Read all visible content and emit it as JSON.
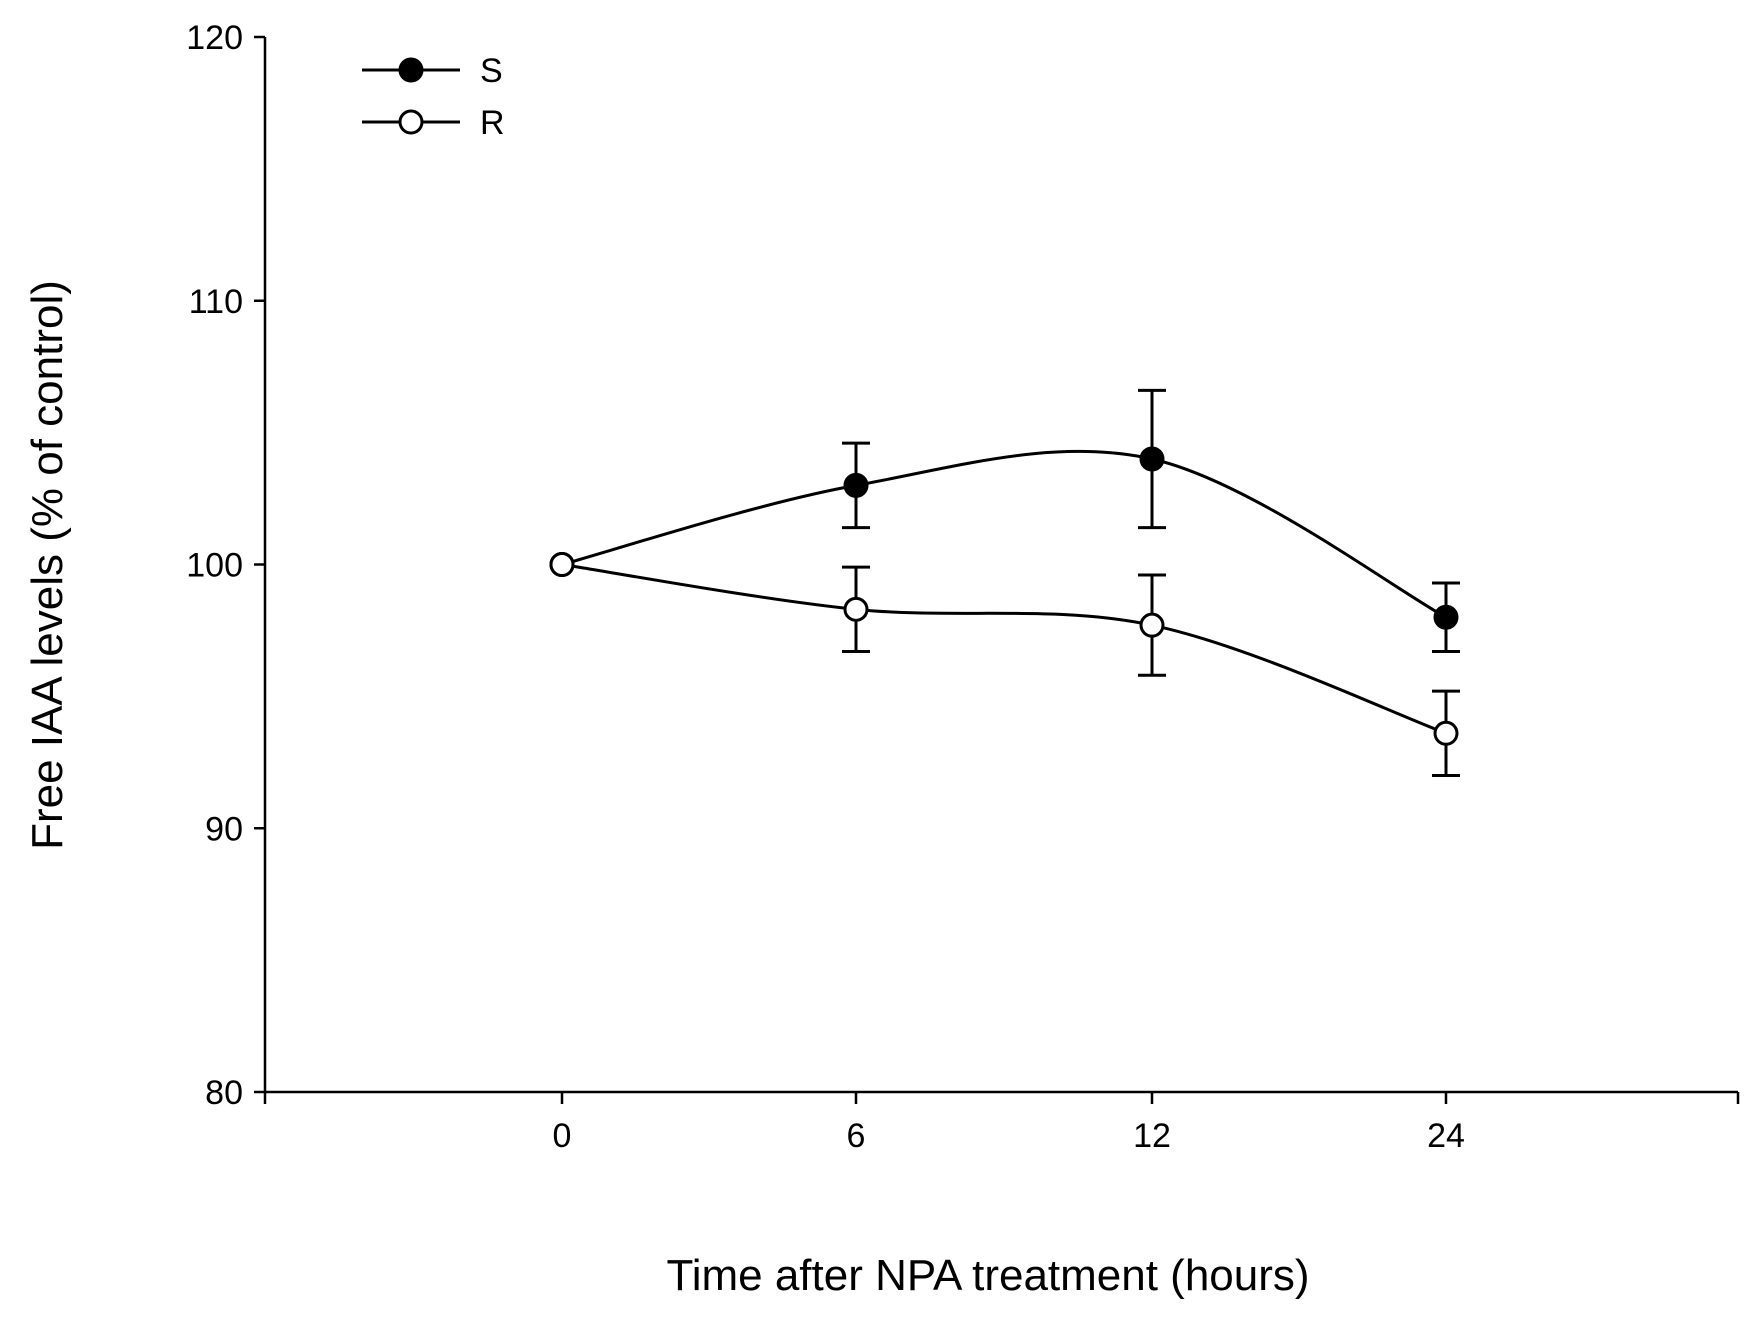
{
  "chart_data": {
    "type": "line",
    "title": "",
    "xlabel": "Time after NPA treatment (hours)",
    "ylabel": "Free IAA levels (% of control)",
    "x_categories": [
      "0",
      "6",
      "12",
      "24"
    ],
    "ylim": [
      80,
      120
    ],
    "yticks": [
      80,
      90,
      100,
      110,
      120
    ],
    "grid": false,
    "legend_position": "top-left",
    "series": [
      {
        "name": "S",
        "marker": "filled-circle",
        "values": [
          100,
          103,
          104,
          98
        ],
        "errors": [
          0,
          1.6,
          2.6,
          1.3
        ]
      },
      {
        "name": "R",
        "marker": "open-circle",
        "values": [
          100,
          98.3,
          97.7,
          93.6
        ],
        "errors": [
          0,
          1.6,
          1.9,
          1.6
        ]
      }
    ]
  }
}
